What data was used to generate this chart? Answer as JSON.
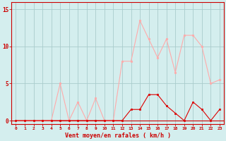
{
  "x": [
    0,
    1,
    2,
    3,
    4,
    5,
    6,
    7,
    8,
    9,
    10,
    11,
    12,
    13,
    14,
    15,
    16,
    17,
    18,
    19,
    20,
    21,
    22,
    23
  ],
  "y_rafales": [
    0,
    0,
    0,
    0,
    0,
    5,
    0,
    2.5,
    0,
    3,
    0,
    0,
    8,
    8,
    13.5,
    11,
    8.5,
    11,
    6.5,
    11.5,
    11.5,
    10,
    5,
    5.5
  ],
  "y_moyen": [
    0,
    0,
    0,
    0,
    0,
    0,
    0,
    0,
    0,
    0,
    0,
    0,
    0,
    1.5,
    1.5,
    3.5,
    3.5,
    2,
    1,
    0,
    2.5,
    1.5,
    0,
    1.5
  ],
  "color_rafales": "#ffaaaa",
  "color_moyen": "#dd0000",
  "bg_color": "#d4eeee",
  "grid_color": "#aacccc",
  "axis_color": "#cc0000",
  "tick_color": "#cc0000",
  "xlabel": "Vent moyen/en rafales ( km/h )",
  "yticks": [
    0,
    5,
    10,
    15
  ],
  "xlim": [
    -0.5,
    23.5
  ],
  "ylim": [
    -0.5,
    16
  ]
}
